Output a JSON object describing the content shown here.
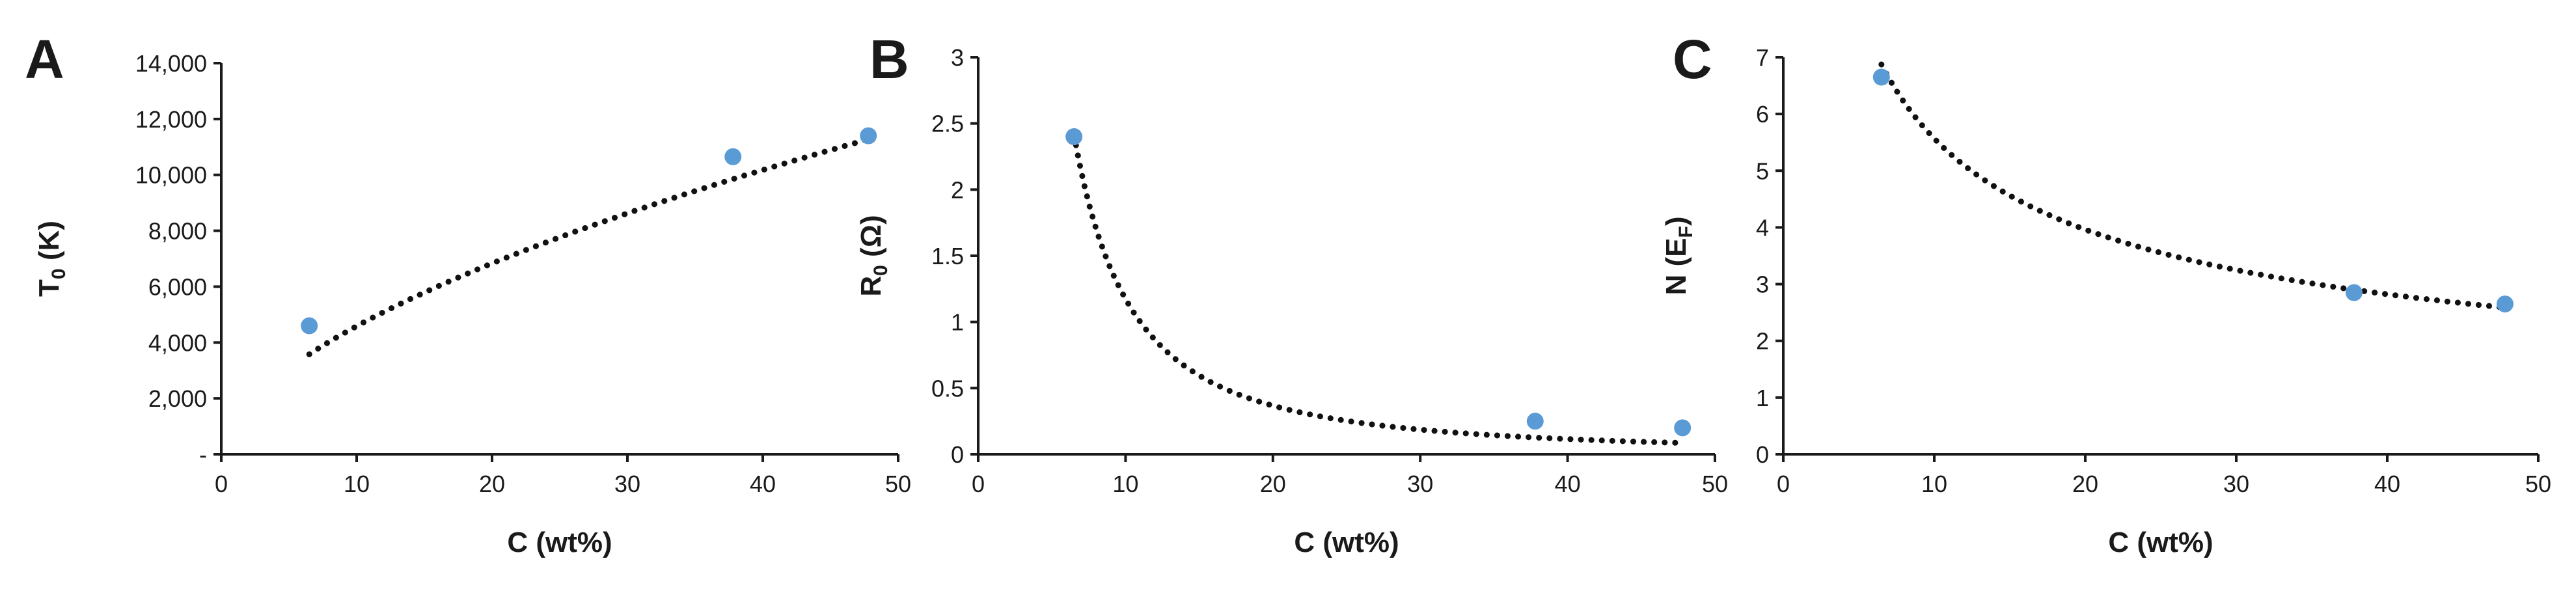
{
  "chart_data": [
    {
      "panel": "A",
      "type": "scatter",
      "xlabel": "C (wt%)",
      "ylabel": {
        "base": "T",
        "sub": "0",
        "rest": " (K)"
      },
      "xlim": [
        0,
        50
      ],
      "ylim": [
        0,
        14000
      ],
      "x_ticks": [
        0,
        10,
        20,
        30,
        40,
        50
      ],
      "y_ticks": [
        0,
        2000,
        4000,
        6000,
        8000,
        10000,
        12000,
        14000
      ],
      "y_tick_labels": [
        "-",
        "2,000",
        "4,000",
        "6,000",
        "8,000",
        "10,000",
        "12,000",
        "14,000"
      ],
      "grid": false,
      "legend": "none",
      "point_color": "#5b9bd5",
      "x": [
        6.5,
        37.8,
        47.8
      ],
      "y": [
        4600,
        10650,
        11400
      ],
      "trendline": {
        "style": "dotted",
        "color": "#111111",
        "x_range": [
          6.5,
          47.8
        ],
        "model": "power",
        "a": 1220,
        "b": 0.575
      }
    },
    {
      "panel": "B",
      "type": "scatter",
      "xlabel": "C (wt%)",
      "ylabel": {
        "base": "R",
        "sub": "0",
        "rest": " (Ω)"
      },
      "xlim": [
        0,
        50
      ],
      "ylim": [
        0,
        3
      ],
      "x_ticks": [
        0,
        10,
        20,
        30,
        40,
        50
      ],
      "y_ticks": [
        0,
        0.5,
        1,
        1.5,
        2,
        2.5,
        3
      ],
      "y_tick_labels": [
        "0",
        "0.5",
        "1",
        "1.5",
        "2",
        "2.5",
        "3"
      ],
      "grid": false,
      "legend": "none",
      "point_color": "#5b9bd5",
      "x": [
        6.5,
        37.8,
        47.8
      ],
      "y": [
        2.4,
        0.25,
        0.2
      ],
      "trendline": {
        "style": "dotted",
        "color": "#111111",
        "x_range": [
          6.5,
          47.8
        ],
        "model": "power",
        "a": 55.5,
        "b": -1.675
      }
    },
    {
      "panel": "C",
      "type": "scatter",
      "xlabel": "C (wt%)",
      "ylabel": {
        "base": "N (E",
        "sub": "F",
        "rest": ")"
      },
      "xlim": [
        0,
        50
      ],
      "ylim": [
        0,
        7
      ],
      "x_ticks": [
        0,
        10,
        20,
        30,
        40,
        50
      ],
      "y_ticks": [
        0,
        1,
        2,
        3,
        4,
        5,
        6,
        7
      ],
      "y_tick_labels": [
        "0",
        "1",
        "2",
        "3",
        "4",
        "5",
        "6",
        "7"
      ],
      "grid": false,
      "legend": "none",
      "point_color": "#5b9bd5",
      "x": [
        6.5,
        37.8,
        47.8
      ],
      "y": [
        6.65,
        2.85,
        2.65
      ],
      "trendline": {
        "style": "dotted",
        "color": "#111111",
        "x_range": [
          6.5,
          47.8
        ],
        "model": "power",
        "a": 17.2,
        "b": -0.49
      }
    }
  ]
}
